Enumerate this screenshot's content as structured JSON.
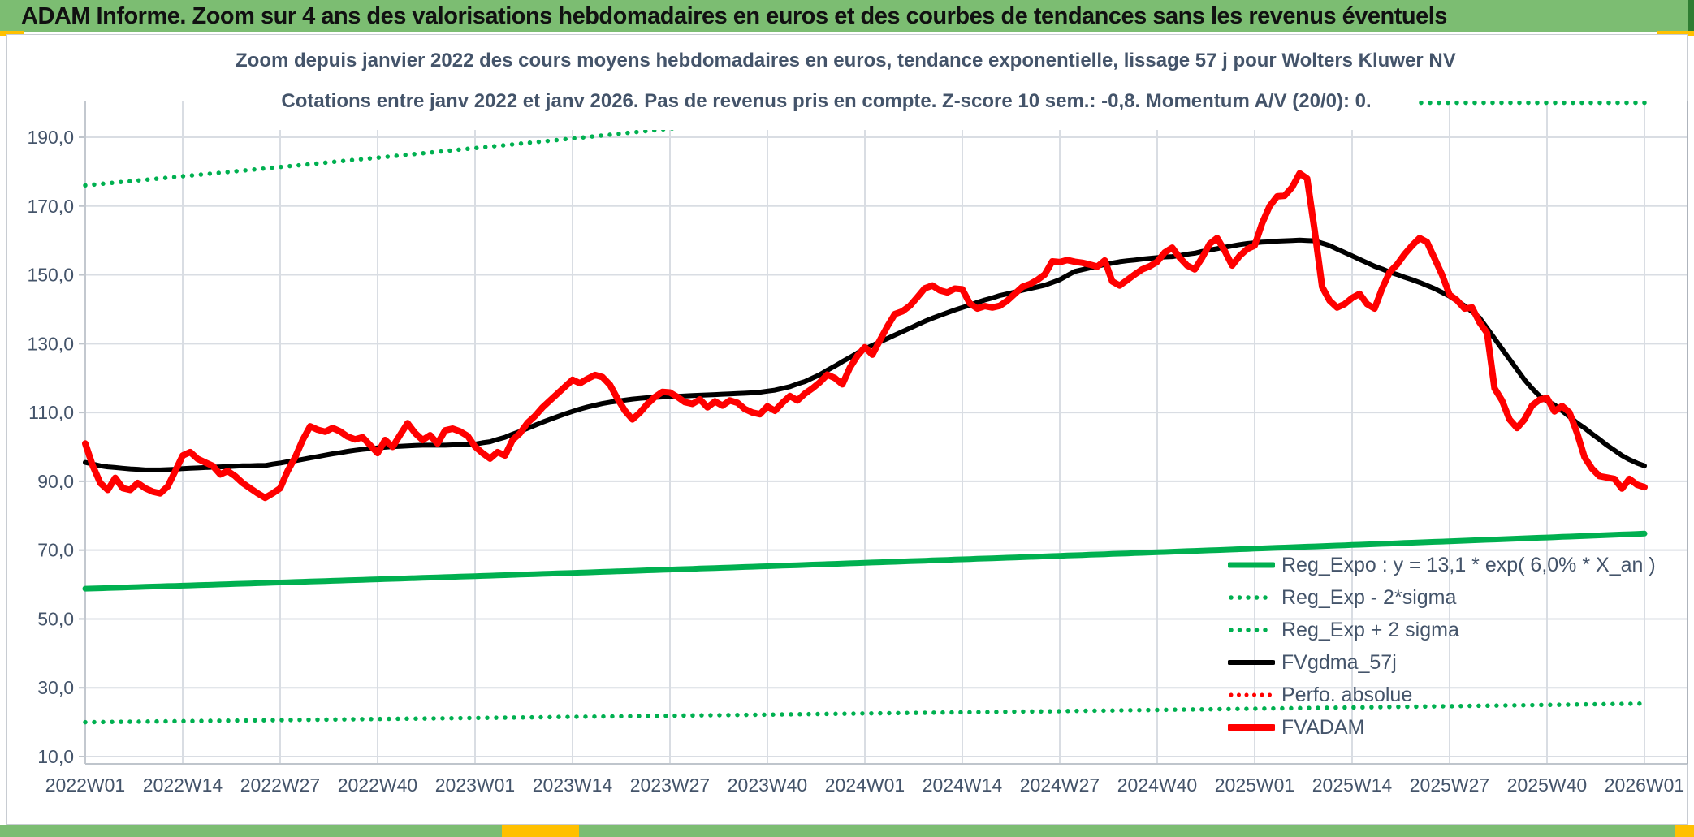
{
  "header": {
    "title": "ADAM Informe. Zoom sur 4 ans des valorisations hebdomadaires en euros et des courbes de tendances sans les revenus éventuels",
    "bg_color": "#7CBD72",
    "accent_color": "#FFC000"
  },
  "chart_data": {
    "type": "line",
    "title_line1": "Zoom depuis janvier 2022 des cours moyens hebdomadaires en euros, tendance exponentielle, lissage 57 j pour Wolters Kluwer NV",
    "title_line2": "Cotations entre janv 2022 et janv 2026. Pas de revenus pris en compte. Z-score 10 sem.: -0,8. Momentum A/V (20/0): 0.",
    "x_tick_labels": [
      "2022W01",
      "2022W14",
      "2022W27",
      "2022W40",
      "2023W01",
      "2023W14",
      "2023W27",
      "2023W40",
      "2024W01",
      "2024W14",
      "2024W27",
      "2024W40",
      "2025W01",
      "2025W14",
      "2025W27",
      "2025W40",
      "2026W01"
    ],
    "x_tick_weeks": [
      0,
      13,
      26,
      39,
      52,
      65,
      78,
      91,
      104,
      117,
      130,
      143,
      156,
      169,
      182,
      195,
      208
    ],
    "weeks_total": 208,
    "y_ticks": [
      "10,0",
      "30,0",
      "50,0",
      "70,0",
      "90,0",
      "110,0",
      "130,0",
      "150,0",
      "170,0",
      "190,0"
    ],
    "y_tick_values": [
      10,
      30,
      50,
      70,
      90,
      110,
      130,
      150,
      170,
      190
    ],
    "y_axis_max": 200,
    "grid": true,
    "legend_position": "inside-bottom-right",
    "colors": {
      "green": "#00B050",
      "red": "#FF0000",
      "black": "#000000",
      "grid": "#D9DDE3",
      "axis_text": "#44546A"
    },
    "series": [
      {
        "name": "FVADAM",
        "color": "#FF0000",
        "style": "solid",
        "width": 8,
        "values": [
          101,
          94.5,
          89.5,
          87.5,
          91,
          88,
          87.5,
          89.5,
          88,
          87,
          86.5,
          88.5,
          93,
          97.5,
          98.5,
          96.5,
          95.5,
          94.5,
          92,
          93,
          91.5,
          89.5,
          88,
          86.5,
          85.2,
          86.5,
          88,
          93,
          97,
          102,
          106,
          105,
          104.4,
          105.5,
          104.5,
          103,
          102.2,
          102.8,
          100.5,
          98.2,
          102,
          100,
          103.5,
          106.9,
          104,
          102,
          103.4,
          101,
          104.8,
          105.3,
          104.5,
          103.2,
          100.1,
          98.2,
          96.6,
          98.5,
          97.5,
          102,
          104,
          107,
          109,
          111.5,
          113.5,
          115.5,
          117.5,
          119.5,
          118.5,
          119.8,
          120.9,
          120.3,
          118,
          114,
          110.5,
          108,
          110,
          112.5,
          114.5,
          116,
          115.8,
          114.5,
          113,
          112.5,
          113.8,
          111.5,
          113.2,
          112,
          113.5,
          112.8,
          111,
          110,
          109.5,
          111.8,
          110.5,
          112.8,
          114.8,
          113.5,
          115.5,
          117,
          118.8,
          121,
          120,
          118.2,
          123,
          126.5,
          129,
          126.8,
          131,
          135,
          138.6,
          139.4,
          141,
          143.5,
          146.1,
          146.9,
          145.5,
          144.9,
          146,
          145.8,
          141.7,
          140.2,
          140.9,
          140.5,
          141,
          142.5,
          144.5,
          146.5,
          147.3,
          148.5,
          150.1,
          153.9,
          153.7,
          154.3,
          153.8,
          153.5,
          153,
          152.4,
          154.2,
          148.1,
          146.9,
          148.5,
          150.1,
          151.6,
          152.5,
          153.8,
          156.5,
          157.9,
          155,
          152.7,
          151.6,
          155,
          159,
          160.7,
          157,
          152.7,
          155.5,
          157.5,
          158.5,
          165,
          170,
          172.8,
          173,
          175.5,
          179.5,
          178,
          163,
          146.5,
          142.5,
          140.5,
          141.5,
          143.3,
          144.5,
          141.5,
          140.2,
          146,
          150.8,
          153,
          156,
          158.5,
          160.7,
          159.5,
          154.8,
          150,
          144.2,
          142.6,
          140.2,
          140.5,
          136.2,
          133.1,
          117,
          113.5,
          108,
          105.5,
          108,
          112,
          113.7,
          114.2,
          110.3,
          111.9,
          110,
          104.1,
          97,
          93.7,
          91.5,
          91.1,
          90.7,
          87.9,
          90.7,
          89,
          88.3
        ]
      },
      {
        "name": "FVgdma_57j",
        "color": "#000000",
        "style": "solid",
        "width": 6,
        "values": [
          95.5,
          95,
          94.5,
          94.2,
          94,
          93.8,
          93.6,
          93.5,
          93.3,
          93.3,
          93.3,
          93.4,
          93.5,
          93.7,
          93.8,
          93.9,
          94,
          94.1,
          94.2,
          94.3,
          94.4,
          94.5,
          94.5,
          94.6,
          94.6,
          95,
          95.3,
          95.7,
          96,
          96.4,
          96.8,
          97.2,
          97.6,
          98,
          98.3,
          98.7,
          99,
          99.3,
          99.5,
          99.7,
          99.9,
          100.1,
          100.2,
          100.3,
          100.4,
          100.5,
          100.5,
          100.5,
          100.5,
          100.6,
          100.6,
          100.7,
          100.8,
          101.2,
          101.5,
          102.2,
          102.8,
          103.7,
          104.5,
          105.4,
          106.3,
          107.2,
          108,
          108.8,
          109.6,
          110.3,
          111,
          111.6,
          112.1,
          112.6,
          113,
          113.3,
          113.6,
          113.9,
          114.1,
          114.3,
          114.4,
          114.5,
          114.6,
          114.7,
          114.8,
          114.9,
          115,
          115.1,
          115.2,
          115.3,
          115.4,
          115.5,
          115.6,
          115.7,
          115.9,
          116.2,
          116.5,
          117,
          117.5,
          118.3,
          119,
          120,
          121,
          122.3,
          123.5,
          124.8,
          126,
          127.3,
          128.5,
          129.5,
          130.5,
          131.5,
          132.5,
          133.5,
          134.5,
          135.5,
          136.5,
          137.4,
          138.2,
          139,
          139.8,
          140.5,
          141.2,
          142,
          142.7,
          143.3,
          144,
          144.5,
          145,
          145.5,
          146,
          146.5,
          147,
          147.8,
          148.6,
          149.8,
          151,
          151.5,
          152,
          152.5,
          153,
          153.4,
          153.8,
          154.1,
          154.3,
          154.6,
          154.8,
          155,
          155.2,
          155.3,
          155.6,
          156,
          156.3,
          156.8,
          157.2,
          157.6,
          158,
          158.4,
          158.8,
          159.1,
          159.3,
          159.5,
          159.6,
          159.8,
          159.9,
          160,
          160.1,
          160,
          159.9,
          159.2,
          158.5,
          157.5,
          156.5,
          155.5,
          154.5,
          153.5,
          152.5,
          151.7,
          150.8,
          150.1,
          149.3,
          148.6,
          147.8,
          146.9,
          146,
          144.9,
          143.8,
          142.4,
          141,
          139.3,
          137.5,
          134.5,
          131.5,
          128.5,
          125.5,
          122.5,
          119.5,
          117,
          114.8,
          113.3,
          112.2,
          110.5,
          108.8,
          107,
          105.5,
          103.8,
          102.2,
          100.5,
          99,
          97.5,
          96.3,
          95.3,
          94.5,
          94
        ]
      },
      {
        "name": "Reg_Expo",
        "color": "#00B050",
        "style": "solid",
        "width": 7,
        "trend": {
          "v_start": 58.8,
          "v_end": 74.8
        }
      },
      {
        "name": "Reg_Exp - 2*sigma",
        "color": "#00B050",
        "style": "dotted",
        "width": 5.5,
        "trend": {
          "v_start": 20.0,
          "v_end": 25.4
        }
      },
      {
        "name": "Reg_Exp + 2 sigma",
        "color": "#00B050",
        "style": "dotted",
        "width": 5.5,
        "trend": {
          "v_start": 176.0,
          "v_end": 223.5,
          "clip_max": 200
        }
      }
    ],
    "legend": [
      {
        "label": "Reg_Expo : y = 13,1 * exp( 6,0% *  X_an )",
        "color": "#00B050",
        "style": "solid"
      },
      {
        "label": "Reg_Exp - 2*sigma",
        "color": "#00B050",
        "style": "dotted"
      },
      {
        "label": "Reg_Exp + 2 sigma",
        "color": "#00B050",
        "style": "dotted"
      },
      {
        "label": "FVgdma_57j",
        "color": "#000000",
        "style": "solid"
      },
      {
        "label": "Perfo. absolue",
        "color": "#FF0000",
        "style": "dotted"
      },
      {
        "label": "FVADAM",
        "color": "#FF0000",
        "style": "solid"
      }
    ]
  }
}
